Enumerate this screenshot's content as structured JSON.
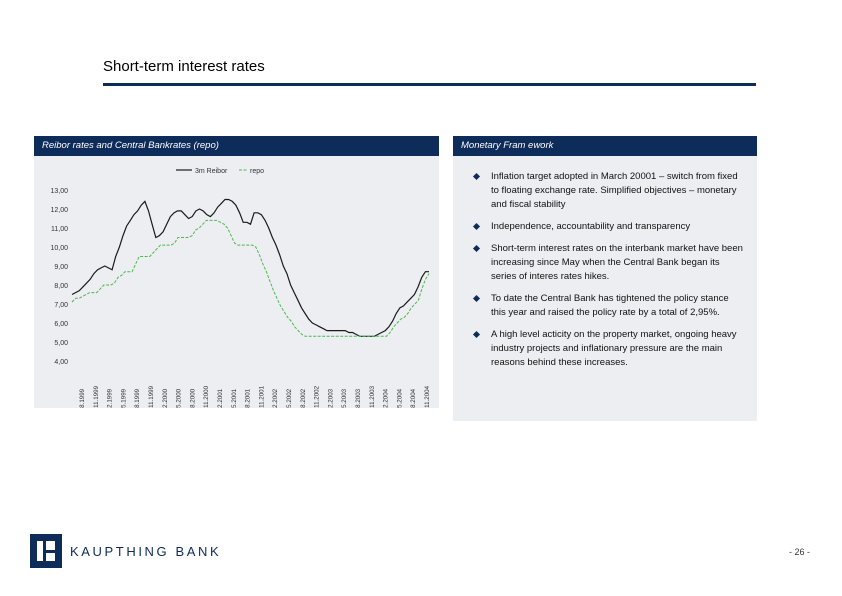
{
  "page": {
    "title": "Short-term interest rates",
    "page_number": "- 26 -"
  },
  "colors": {
    "navy": "#0d2c5a",
    "panel": "#eceef2",
    "series_primary": "#1a1a1a",
    "series_repo": "#4fb84f"
  },
  "left_panel": {
    "heading": "Reibor rates and Central Bankrates (repo)"
  },
  "right_panel": {
    "heading": "Monetary Fram ework",
    "bullets": [
      "Inflation target adopted in March 20001 – switch from fixed to floating exchange rate. Simplified objectives – monetary and fiscal stability",
      "Independence, accountability and transparency",
      "Short-term interest rates on the interbank market have been increasing since May when the Central Bank began its series of interes rates hikes.",
      "To date the Central Bank has tightened the policy stance this year and raised the policy rate by a total of 2,95%.",
      "A high level acticity on the property market, ongoing heavy industry projects and inflationary pressure are the main reasons behind these increases."
    ]
  },
  "logo": {
    "text": "KAUPTHING BANK",
    "icon": "kaupthing-logo-icon"
  },
  "chart_data": {
    "type": "line",
    "legend": [
      "3m Reibor",
      "repo"
    ],
    "legend_position": "top-center",
    "ylim": [
      4,
      13
    ],
    "ytick_labels": [
      "4,00",
      "5,00",
      "6,00",
      "7,00",
      "8,00",
      "9,00",
      "10,00",
      "11,00",
      "12,00",
      "13,00"
    ],
    "xtick_labels": [
      "1.8.1999",
      "1.11.1999",
      "1.2.1999",
      "1.5.1999",
      "1.8.1999",
      "1.11.1999",
      "1.2.2000",
      "1.5.2000",
      "1.8.2000",
      "1.11.2000",
      "1.2.2001",
      "1.5.2001",
      "1.8.2001",
      "1.11.2001",
      "1.2.2002",
      "1.5.2002",
      "1.8.2002",
      "1.11.2002",
      "1.2.2003",
      "1.5.2003",
      "1.8.2003",
      "1.11.2003",
      "1.2.2004",
      "1.5.2004",
      "1.8.2004",
      "1.11.2004"
    ],
    "series": [
      {
        "name": "3m Reibor",
        "values": [
          7.5,
          7.6,
          7.7,
          7.9,
          8.1,
          8.3,
          8.6,
          8.8,
          8.9,
          9.0,
          8.9,
          8.8,
          9.5,
          10.0,
          10.6,
          11.1,
          11.4,
          11.7,
          11.9,
          12.2,
          12.4,
          11.9,
          11.2,
          10.5,
          10.6,
          10.8,
          11.2,
          11.6,
          11.8,
          11.9,
          11.9,
          11.7,
          11.5,
          11.6,
          11.9,
          12.0,
          11.9,
          11.7,
          11.6,
          11.8,
          12.1,
          12.3,
          12.5,
          12.5,
          12.4,
          12.2,
          11.8,
          11.3,
          11.3,
          11.2,
          11.8,
          11.8,
          11.7,
          11.4,
          11.0,
          10.5,
          10.1,
          9.6,
          9.0,
          8.6,
          8.0,
          7.6,
          7.2,
          6.8,
          6.5,
          6.2,
          6.0,
          5.9,
          5.8,
          5.7,
          5.6,
          5.6,
          5.6,
          5.6,
          5.6,
          5.6,
          5.5,
          5.5,
          5.4,
          5.3,
          5.3,
          5.3,
          5.3,
          5.3,
          5.4,
          5.5,
          5.6,
          5.8,
          6.1,
          6.5,
          6.8,
          6.9,
          7.1,
          7.3,
          7.5,
          7.9,
          8.4,
          8.7,
          8.7
        ]
      },
      {
        "name": "repo",
        "values": [
          7.1,
          7.3,
          7.3,
          7.4,
          7.5,
          7.6,
          7.6,
          7.6,
          7.8,
          8.0,
          8.0,
          8.0,
          8.1,
          8.4,
          8.5,
          8.7,
          8.7,
          8.7,
          9.1,
          9.5,
          9.5,
          9.5,
          9.5,
          9.7,
          9.9,
          10.1,
          10.1,
          10.1,
          10.1,
          10.2,
          10.5,
          10.5,
          10.5,
          10.5,
          10.6,
          10.9,
          11.0,
          11.2,
          11.4,
          11.4,
          11.4,
          11.4,
          11.3,
          11.2,
          11.0,
          10.6,
          10.2,
          10.1,
          10.1,
          10.1,
          10.1,
          10.1,
          10.0,
          9.6,
          9.1,
          8.7,
          8.2,
          7.7,
          7.3,
          6.9,
          6.6,
          6.3,
          6.1,
          5.8,
          5.6,
          5.4,
          5.3,
          5.3,
          5.3,
          5.3,
          5.3,
          5.3,
          5.3,
          5.3,
          5.3,
          5.3,
          5.3,
          5.3,
          5.3,
          5.3,
          5.3,
          5.3,
          5.3,
          5.3,
          5.3,
          5.3,
          5.3,
          5.3,
          5.3,
          5.3,
          5.5,
          5.8,
          6.0,
          6.2,
          6.3,
          6.5,
          6.8,
          7.0,
          7.2,
          7.8,
          8.3,
          8.6
        ]
      }
    ]
  }
}
